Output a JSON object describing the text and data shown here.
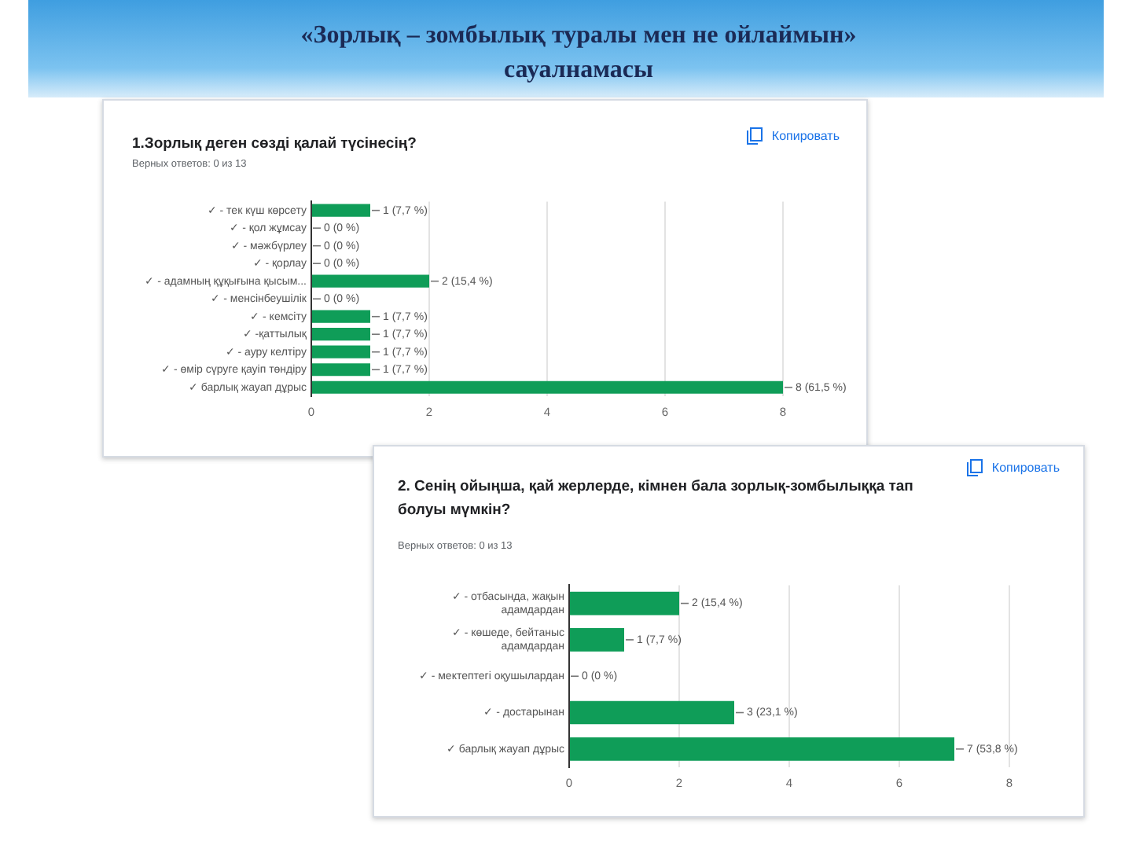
{
  "chart_data": [
    {
      "type": "other",
      "title": "«Зорлық – зомбылық туралы мен не ойлаймын» сауалнамасы"
    },
    {
      "type": "bar",
      "orientation": "horizontal",
      "title": "1.Зорлық деген сөзді қалай түсінесің?",
      "subtitle": "Верных ответов: 0 из 13",
      "annotations": [
        "Копировать"
      ],
      "categories": [
        "✓ - тек күш көрсету",
        "✓ - қол жұмсау",
        "✓ - мәжбүрлеу",
        "✓ - қорлау",
        "✓ - адамның құқығына қысым...",
        "✓ - менсінбеушілік",
        "✓ - кемсіту",
        "✓ -қаттылық",
        "✓ - ауру келтіру",
        "✓ - өмір сүруге қауіп төндіру",
        "✓ барлық жауап дұрыс"
      ],
      "values": [
        1,
        0,
        0,
        0,
        2,
        0,
        1,
        1,
        1,
        1,
        8
      ],
      "value_labels": [
        "1 (7,7 %)",
        "0 (0 %)",
        "0 (0 %)",
        "0 (0 %)",
        "2 (15,4 %)",
        "0 (0 %)",
        "1 (7,7 %)",
        "1 (7,7 %)",
        "1 (7,7 %)",
        "1 (7,7 %)",
        "8 (61,5 %)"
      ],
      "color": "#0f9d58",
      "xlim": [
        0,
        8
      ],
      "xticks": [
        0,
        2,
        4,
        6,
        8
      ],
      "grid": "x"
    },
    {
      "type": "bar",
      "orientation": "horizontal",
      "title": "2. Сенің ойыңша, қай жерлерде, кімнен бала зорлық-зомбылыққа тап болуы мүмкін?",
      "subtitle": "Верных ответов: 0 из 13",
      "annotations": [
        "Копировать"
      ],
      "categories": [
        "✓ - отбасында, жақын адамдардан",
        "✓ - көшеде, бейтаныс адамдардан",
        "✓ - мектептегі оқушылардан",
        "✓ - достарынан",
        "✓ барлық жауап дұрыс"
      ],
      "values": [
        2,
        1,
        0,
        3,
        7
      ],
      "value_labels": [
        "2 (15,4 %)",
        "1 (7,7 %)",
        "0 (0 %)",
        "3 (23,1 %)",
        "7 (53,8 %)"
      ],
      "color": "#0f9d58",
      "xlim": [
        0,
        8
      ],
      "xticks": [
        0,
        2,
        4,
        6,
        8
      ],
      "grid": "x"
    }
  ]
}
